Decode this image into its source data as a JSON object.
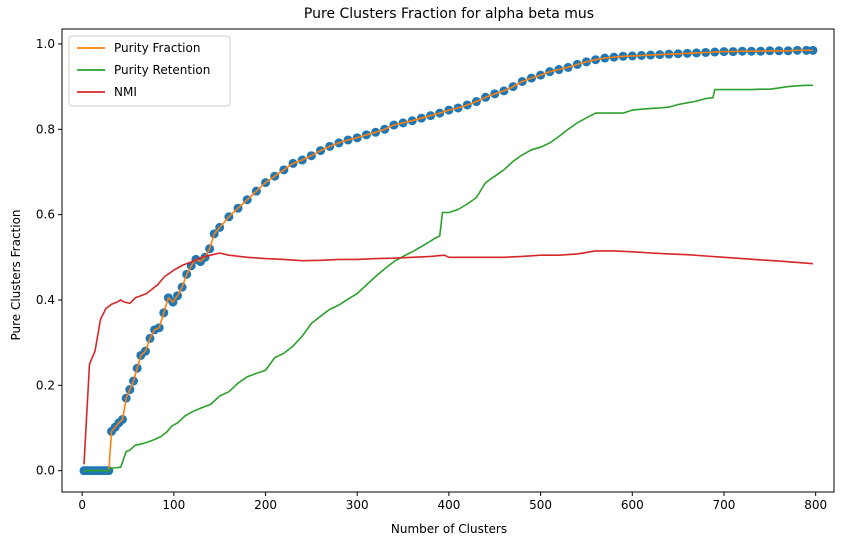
{
  "chart_data": {
    "type": "line",
    "title": "Pure Clusters Fraction for alpha beta mus",
    "xlabel": "Number of Clusters",
    "ylabel": "Pure Clusters Fraction",
    "xlim": [
      -22,
      820
    ],
    "ylim": [
      -0.05,
      1.035
    ],
    "xticks": [
      0,
      100,
      200,
      300,
      400,
      500,
      600,
      700,
      800
    ],
    "yticks": [
      0.0,
      0.2,
      0.4,
      0.6,
      0.8,
      1.0
    ],
    "xtick_labels": [
      "0",
      "100",
      "200",
      "300",
      "400",
      "500",
      "600",
      "700",
      "800"
    ],
    "ytick_labels": [
      "0.0",
      "0.2",
      "0.4",
      "0.6",
      "0.8",
      "1.0"
    ],
    "grid": false,
    "legend_position": "upper-left",
    "legend": [
      "Purity Fraction",
      "Purity Retention",
      "NMI"
    ],
    "series": [
      {
        "name": "Purity Fraction",
        "color": "#ff7f0e",
        "markers": true,
        "marker_color": "#1f77b4",
        "x": [
          2,
          5,
          8,
          11,
          14,
          17,
          20,
          23,
          26,
          29,
          32,
          36,
          40,
          44,
          48,
          52,
          56,
          60,
          64,
          69,
          74,
          79,
          84,
          89,
          94,
          99,
          104,
          109,
          114,
          119,
          124,
          129,
          134,
          139,
          144,
          150,
          160,
          170,
          180,
          190,
          200,
          210,
          220,
          230,
          240,
          250,
          260,
          270,
          280,
          290,
          300,
          310,
          320,
          330,
          340,
          350,
          360,
          370,
          380,
          390,
          400,
          410,
          420,
          430,
          440,
          450,
          460,
          470,
          480,
          490,
          500,
          510,
          520,
          530,
          540,
          550,
          560,
          570,
          580,
          590,
          600,
          610,
          620,
          630,
          640,
          650,
          660,
          670,
          680,
          690,
          700,
          710,
          720,
          730,
          740,
          750,
          760,
          770,
          780,
          790,
          797
        ],
        "y": [
          0.0,
          0.0,
          0.0,
          0.0,
          0.0,
          0.0,
          0.0,
          0.0,
          0.0,
          0.0,
          0.092,
          0.102,
          0.112,
          0.12,
          0.17,
          0.19,
          0.21,
          0.24,
          0.27,
          0.28,
          0.31,
          0.33,
          0.335,
          0.37,
          0.405,
          0.395,
          0.41,
          0.43,
          0.46,
          0.48,
          0.495,
          0.49,
          0.5,
          0.52,
          0.555,
          0.57,
          0.595,
          0.615,
          0.635,
          0.655,
          0.675,
          0.69,
          0.705,
          0.72,
          0.728,
          0.738,
          0.75,
          0.76,
          0.768,
          0.775,
          0.78,
          0.787,
          0.793,
          0.8,
          0.81,
          0.815,
          0.82,
          0.826,
          0.832,
          0.838,
          0.845,
          0.85,
          0.857,
          0.865,
          0.875,
          0.883,
          0.89,
          0.9,
          0.912,
          0.92,
          0.927,
          0.935,
          0.94,
          0.945,
          0.952,
          0.958,
          0.963,
          0.967,
          0.969,
          0.971,
          0.972,
          0.973,
          0.974,
          0.975,
          0.976,
          0.977,
          0.978,
          0.979,
          0.98,
          0.981,
          0.982,
          0.982,
          0.983,
          0.983,
          0.983,
          0.984,
          0.984,
          0.984,
          0.985,
          0.985,
          0.985
        ]
      },
      {
        "name": "Purity Retention",
        "color": "#2ca02c",
        "markers": false,
        "x": [
          2,
          29,
          30,
          42,
          48,
          52,
          58,
          64,
          70,
          78,
          86,
          92,
          98,
          104,
          112,
          120,
          130,
          140,
          150,
          160,
          170,
          180,
          190,
          200,
          210,
          220,
          230,
          240,
          250,
          260,
          270,
          280,
          290,
          300,
          310,
          320,
          330,
          340,
          350,
          360,
          370,
          380,
          385,
          390,
          393,
          400,
          410,
          420,
          430,
          440,
          450,
          460,
          470,
          480,
          490,
          500,
          510,
          520,
          530,
          540,
          550,
          560,
          570,
          580,
          590,
          600,
          610,
          620,
          630,
          640,
          650,
          660,
          670,
          680,
          688,
          690,
          700,
          710,
          720,
          730,
          740,
          750,
          760,
          770,
          780,
          790,
          797
        ],
        "y": [
          0.0,
          0.0,
          0.005,
          0.008,
          0.045,
          0.048,
          0.06,
          0.062,
          0.066,
          0.072,
          0.08,
          0.09,
          0.105,
          0.112,
          0.128,
          0.138,
          0.147,
          0.155,
          0.175,
          0.185,
          0.205,
          0.22,
          0.228,
          0.235,
          0.265,
          0.275,
          0.292,
          0.315,
          0.345,
          0.362,
          0.378,
          0.388,
          0.402,
          0.415,
          0.435,
          0.455,
          0.473,
          0.49,
          0.502,
          0.513,
          0.525,
          0.538,
          0.545,
          0.55,
          0.605,
          0.605,
          0.612,
          0.625,
          0.64,
          0.675,
          0.69,
          0.705,
          0.725,
          0.74,
          0.752,
          0.758,
          0.768,
          0.783,
          0.8,
          0.815,
          0.827,
          0.838,
          0.838,
          0.838,
          0.838,
          0.845,
          0.847,
          0.849,
          0.85,
          0.852,
          0.858,
          0.862,
          0.866,
          0.872,
          0.874,
          0.893,
          0.893,
          0.893,
          0.893,
          0.893,
          0.894,
          0.894,
          0.897,
          0.9,
          0.902,
          0.903,
          0.903
        ]
      },
      {
        "name": "NMI",
        "color": "#d62728",
        "markers": false,
        "x": [
          2,
          8,
          14,
          20,
          26,
          32,
          38,
          42,
          46,
          52,
          58,
          64,
          70,
          76,
          82,
          90,
          100,
          110,
          120,
          130,
          140,
          150,
          160,
          180,
          200,
          220,
          240,
          260,
          280,
          300,
          320,
          340,
          360,
          380,
          395,
          400,
          420,
          440,
          460,
          480,
          500,
          520,
          540,
          560,
          580,
          600,
          620,
          640,
          660,
          680,
          700,
          720,
          740,
          760,
          780,
          797
        ],
        "y": [
          0.015,
          0.25,
          0.28,
          0.355,
          0.38,
          0.39,
          0.395,
          0.4,
          0.395,
          0.392,
          0.405,
          0.41,
          0.415,
          0.425,
          0.435,
          0.455,
          0.47,
          0.482,
          0.49,
          0.5,
          0.505,
          0.51,
          0.505,
          0.5,
          0.497,
          0.495,
          0.492,
          0.493,
          0.495,
          0.495,
          0.497,
          0.498,
          0.5,
          0.502,
          0.505,
          0.5,
          0.5,
          0.5,
          0.5,
          0.502,
          0.505,
          0.505,
          0.508,
          0.515,
          0.515,
          0.513,
          0.51,
          0.508,
          0.506,
          0.503,
          0.5,
          0.497,
          0.494,
          0.491,
          0.488,
          0.485
        ]
      }
    ]
  }
}
